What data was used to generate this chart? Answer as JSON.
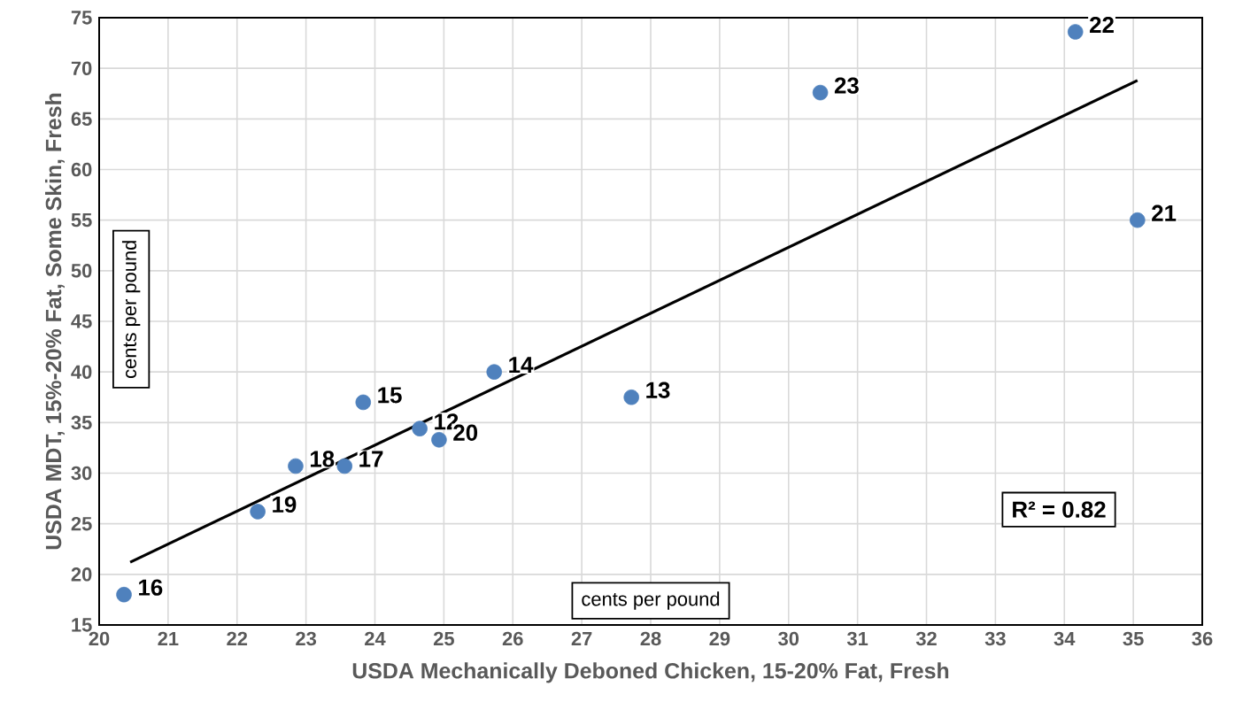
{
  "chart_data": {
    "type": "scatter",
    "xlabel": "USDA Mechanically Deboned Chicken, 15-20% Fat, Fresh",
    "ylabel": "USDA MDT, 15%-20% Fat, Some Skin, Fresh",
    "series": [
      {
        "color": "#4f81bd",
        "marker": "circle",
        "x": [
          34.16,
          30.46,
          35.06,
          25.73,
          27.72,
          23.83,
          24.65,
          24.93,
          22.85,
          23.56,
          22.3,
          20.36
        ],
        "values": [
          73.6,
          67.6,
          55.0,
          40.0,
          37.5,
          37.0,
          34.4,
          33.3,
          30.7,
          30.7,
          26.2,
          18.0
        ]
      },
      {
        "type": "line",
        "color": "#000000",
        "marker": "none",
        "line_style": "solid",
        "x": [
          20.45,
          35.06
        ],
        "values": [
          21.2,
          68.8
        ]
      }
    ],
    "xlim": [
      20,
      36
    ],
    "ylim": [
      15,
      75
    ],
    "xticks": [
      20,
      21,
      22,
      23,
      24,
      25,
      26,
      27,
      28,
      29,
      30,
      31,
      32,
      33,
      34,
      35,
      36
    ],
    "yticks": [
      15,
      20,
      25,
      30,
      35,
      40,
      45,
      50,
      55,
      60,
      65,
      70,
      75
    ],
    "grid": true,
    "annotations": [
      {
        "text": "22",
        "x": 34.16,
        "y": 73.6
      },
      {
        "text": "23",
        "x": 30.46,
        "y": 67.6
      },
      {
        "text": "21",
        "x": 35.06,
        "y": 55.0
      },
      {
        "text": "14",
        "x": 25.73,
        "y": 40.0
      },
      {
        "text": "13",
        "x": 27.72,
        "y": 37.5
      },
      {
        "text": "15",
        "x": 23.83,
        "y": 37.0
      },
      {
        "text": "12",
        "x": 24.65,
        "y": 34.4
      },
      {
        "text": "20",
        "x": 24.93,
        "y": 33.3
      },
      {
        "text": "18",
        "x": 22.85,
        "y": 30.7
      },
      {
        "text": "17",
        "x": 23.56,
        "y": 30.7
      },
      {
        "text": "19",
        "x": 22.3,
        "y": 26.2
      },
      {
        "text": "16",
        "x": 20.36,
        "y": 18.0
      },
      "cents per pound",
      "cents per pound",
      "R² = 0.82"
    ]
  }
}
